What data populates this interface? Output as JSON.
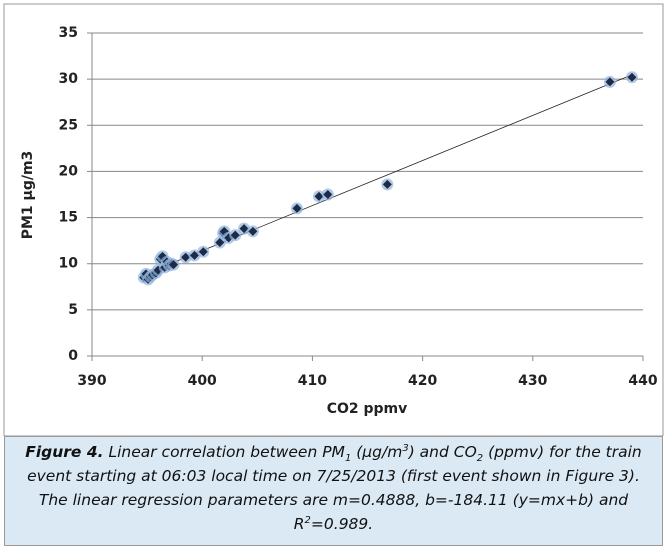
{
  "chart_data": {
    "type": "scatter",
    "x_label": "CO2 ppmv",
    "y_label": "PM1 µg/m3",
    "x": [
      394.7,
      394.9,
      395.1,
      395.3,
      395.5,
      395.8,
      396.0,
      396.2,
      396.4,
      396.6,
      396.8,
      397.0,
      397.2,
      397.4,
      398.5,
      399.3,
      400.1,
      401.6,
      401.9,
      402.0,
      402.4,
      403.0,
      403.8,
      404.6,
      408.6,
      410.6,
      411.4,
      416.8,
      437.0,
      439.0
    ],
    "values": [
      8.5,
      8.9,
      8.3,
      8.6,
      8.8,
      9.0,
      9.3,
      10.5,
      10.8,
      9.6,
      10.2,
      9.8,
      10.0,
      9.9,
      10.7,
      10.9,
      11.3,
      12.3,
      13.3,
      13.5,
      12.8,
      13.1,
      13.8,
      13.5,
      16.0,
      17.3,
      17.5,
      18.6,
      29.7,
      30.2
    ],
    "color": "#1f2a44",
    "glow": "#8fb4de",
    "trendline": {
      "m": 0.4888,
      "b": -184.11
    },
    "xlim": [
      390,
      440
    ],
    "xticks": [
      390,
      400,
      410,
      420,
      430,
      440
    ],
    "ylim": [
      0,
      35
    ],
    "yticks": [
      0,
      5,
      10,
      15,
      20,
      25,
      30,
      35
    ],
    "grid": true,
    "caption": [
      {
        "text": "Figure 4.",
        "format": "bold"
      },
      {
        "text": " Linear correlation between PM",
        "format": "plain"
      },
      {
        "text": "1",
        "format": "sub"
      },
      {
        "text": " (µg/m",
        "format": "plain"
      },
      {
        "text": "3",
        "format": "sup"
      },
      {
        "text": ") and CO",
        "format": "plain"
      },
      {
        "text": "2",
        "format": "sub"
      },
      {
        "text": " (ppmv) for the train event starting at 06:03 local time on 7/25/2013 (first event shown in Figure 3). The linear regression parameters are m=0.4888, b=-184.11 (y=mx+b) and R",
        "format": "plain"
      },
      {
        "text": "2",
        "format": "sup"
      },
      {
        "text": "=0.989.",
        "format": "plain"
      }
    ]
  }
}
